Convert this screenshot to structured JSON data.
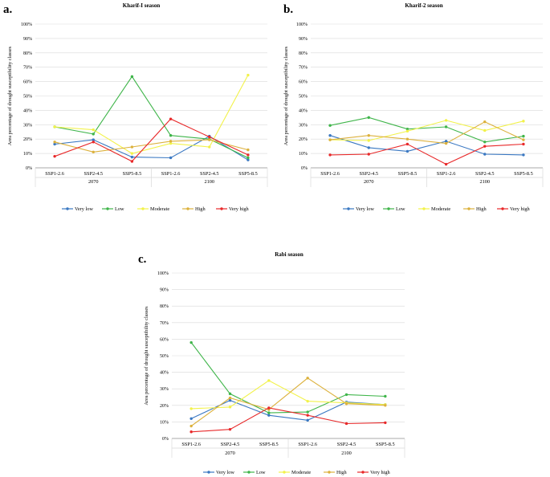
{
  "colors": {
    "Very low": "#3a78c2",
    "Low": "#3fb54a",
    "Moderate": "#f2f24a",
    "High": "#dcb13c",
    "Very high": "#e8292a",
    "grid": "#d9d9d9",
    "axis": "#8c8c8c"
  },
  "chart_data": [
    {
      "type": "line",
      "panel_label": "a.",
      "title": "Kharif-I season",
      "ylabel": "Area percentage of drought susceptibility classes",
      "ylim": [
        0,
        100
      ],
      "yticks": [
        "0%",
        "10%",
        "20%",
        "30%",
        "40%",
        "50%",
        "60%",
        "70%",
        "80%",
        "90%",
        "100%"
      ],
      "categories": [
        "SSP1-2.6",
        "SSP2-4.5",
        "SSP5-8.5",
        "SSP1-2.6",
        "SSP2-4.5",
        "SSP5-8.5"
      ],
      "groups": [
        "2070",
        "2100"
      ],
      "series": [
        {
          "name": "Very low",
          "values": [
            16.5,
            19.5,
            7.5,
            7,
            22,
            5.5
          ]
        },
        {
          "name": "Low",
          "values": [
            28.5,
            23.5,
            63.5,
            22.5,
            20,
            7
          ]
        },
        {
          "name": "Moderate",
          "values": [
            28.5,
            26.5,
            10,
            17,
            14.5,
            64.5
          ]
        },
        {
          "name": "High",
          "values": [
            18,
            11,
            14.5,
            18.5,
            19.5,
            12.5
          ]
        },
        {
          "name": "Very high",
          "values": [
            8,
            18,
            4.5,
            34,
            21.5,
            9
          ]
        }
      ]
    },
    {
      "type": "line",
      "panel_label": "b.",
      "title": "Kharif-2 season",
      "ylabel": "Area percentage of drought susceptibility classes",
      "ylim": [
        0,
        100
      ],
      "yticks": [
        "0%",
        "10%",
        "20%",
        "30%",
        "40%",
        "50%",
        "60%",
        "70%",
        "80%",
        "90%",
        "100%"
      ],
      "categories": [
        "SSP1-2.6",
        "SSP2-4.5",
        "SSP5-8.5",
        "SSP1-2.6",
        "SSP2-4.5",
        "SSP5-8.5"
      ],
      "groups": [
        "2070",
        "2100"
      ],
      "series": [
        {
          "name": "Very low",
          "values": [
            22.5,
            14,
            11.5,
            18.5,
            9.5,
            9
          ]
        },
        {
          "name": "Low",
          "values": [
            29.5,
            35,
            27,
            28.5,
            18,
            22
          ]
        },
        {
          "name": "Moderate",
          "values": [
            19.5,
            19,
            25.5,
            33,
            26,
            32.5
          ]
        },
        {
          "name": "High",
          "values": [
            19.5,
            22.5,
            20,
            17,
            32,
            19.5
          ]
        },
        {
          "name": "Very high",
          "values": [
            9,
            9.5,
            16.5,
            2.5,
            15,
            16.5
          ]
        }
      ]
    },
    {
      "type": "line",
      "panel_label": "c.",
      "title": "Rabi season",
      "ylabel": "Area percentage of drought susceptibility classes",
      "ylim": [
        0,
        100
      ],
      "yticks": [
        "0%",
        "10%",
        "20%",
        "30%",
        "40%",
        "50%",
        "60%",
        "70%",
        "80%",
        "90%",
        "100%"
      ],
      "categories": [
        "SSP1-2.6",
        "SSP2-4.5",
        "SSP5-8.5",
        "SSP1-2.6",
        "SSP2-4.5",
        "SSP5-8.5"
      ],
      "groups": [
        "2070",
        "2100"
      ],
      "series": [
        {
          "name": "Very low",
          "values": [
            12,
            23,
            14,
            11,
            22,
            20.5
          ]
        },
        {
          "name": "Low",
          "values": [
            58,
            27,
            15.5,
            16,
            26.5,
            25.5
          ]
        },
        {
          "name": "Moderate",
          "values": [
            18,
            19,
            35,
            22.5,
            21.5,
            20.5
          ]
        },
        {
          "name": "High",
          "values": [
            7.5,
            24.5,
            17.5,
            36.5,
            21,
            20
          ]
        },
        {
          "name": "Very high",
          "values": [
            4,
            5.5,
            18.5,
            14,
            9,
            9.5
          ]
        }
      ]
    }
  ]
}
